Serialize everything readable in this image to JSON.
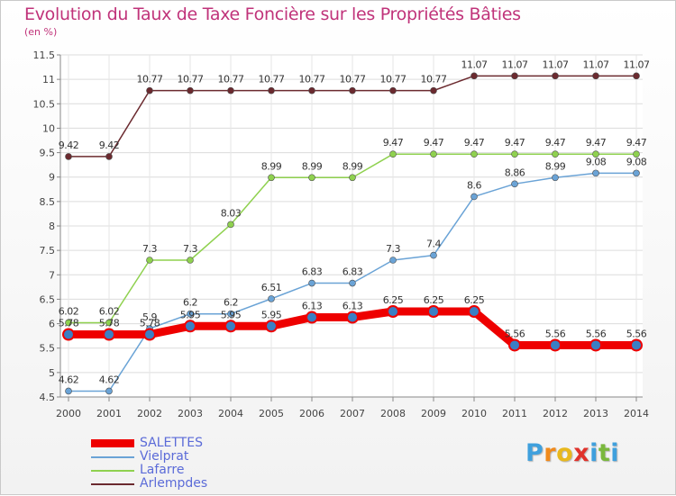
{
  "chart_data": {
    "type": "line",
    "title": "Evolution du Taux de Taxe Foncière sur les Propriétés Bâties",
    "ylabel": "(en %)",
    "xlabel": "",
    "ylim": [
      4.5,
      11.5
    ],
    "yticks": [
      4.5,
      5,
      5.5,
      6,
      6.5,
      7,
      7.5,
      8,
      8.5,
      9,
      9.5,
      10,
      10.5,
      11,
      11.5
    ],
    "ytick_labels": [
      "4.5",
      "5",
      "5.5",
      "6",
      "6.5",
      "7",
      "7.5",
      "8",
      "8.5",
      "9",
      "9.5",
      "10",
      "10.5",
      "11",
      "11.5"
    ],
    "categories": [
      "2000",
      "2001",
      "2002",
      "2003",
      "2004",
      "2005",
      "2006",
      "2007",
      "2008",
      "2009",
      "2010",
      "2011",
      "2012",
      "2013",
      "2014"
    ],
    "grid": true,
    "legend_position": "bottom-left",
    "series": [
      {
        "name": "Arlempdes",
        "color": "#6b2a2f",
        "values": [
          9.42,
          9.42,
          10.77,
          10.77,
          10.77,
          10.77,
          10.77,
          10.77,
          10.77,
          10.77,
          11.07,
          11.07,
          11.07,
          11.07,
          11.07
        ],
        "labels": [
          "9.42",
          "9.42",
          "10.77",
          "10.77",
          "10.77",
          "10.77",
          "10.77",
          "10.77",
          "10.77",
          "10.77",
          "11.07",
          "11.07",
          "11.07",
          "11.07",
          "11.07"
        ]
      },
      {
        "name": "Lafarre",
        "color": "#8fd14f",
        "values": [
          6.02,
          6.02,
          7.3,
          7.3,
          8.03,
          8.99,
          8.99,
          8.99,
          9.47,
          9.47,
          9.47,
          9.47,
          9.47,
          9.47,
          9.47
        ],
        "labels": [
          "6.02",
          "6.02",
          "7.3",
          "7.3",
          "8.03",
          "8.99",
          "8.99",
          "8.99",
          "9.47",
          "9.47",
          "9.47",
          "9.47",
          "9.47",
          "9.47",
          "9.47"
        ]
      },
      {
        "name": "Vielprat",
        "color": "#6aa3d6",
        "values": [
          4.62,
          4.62,
          5.9,
          6.2,
          6.2,
          6.51,
          6.83,
          6.83,
          7.3,
          7.4,
          8.6,
          8.86,
          8.99,
          9.08,
          9.08
        ],
        "labels": [
          "4.62",
          "4.62",
          "5.9",
          "6.2",
          "6.2",
          "6.51",
          "6.83",
          "6.83",
          "7.3",
          "7.4",
          "8.6",
          "8.86",
          "8.99",
          "9.08",
          "9.08"
        ]
      },
      {
        "name": "SALETTES",
        "color": "#ee0000",
        "values": [
          5.78,
          5.78,
          5.78,
          5.95,
          5.95,
          5.95,
          6.13,
          6.13,
          6.25,
          6.25,
          6.25,
          5.56,
          5.56,
          5.56,
          5.56
        ],
        "labels": [
          "5.78",
          "5.78",
          "5.78",
          "5.95",
          "5.95",
          "5.95",
          "6.13",
          "6.13",
          "6.25",
          "6.25",
          "6.25",
          "5.56",
          "5.56",
          "5.56",
          "5.56"
        ]
      }
    ],
    "legend_order": [
      "SALETTES",
      "Vielprat",
      "Lafarre",
      "Arlempdes"
    ]
  },
  "brand": {
    "letters": [
      "P",
      "r",
      "o",
      "x",
      "i",
      "t",
      "i"
    ],
    "colors": [
      "#3fa0dd",
      "#f08a1c",
      "#e8b81d",
      "#e0322b",
      "#3fa0dd",
      "#7ab83d",
      "#3fa0dd"
    ]
  }
}
